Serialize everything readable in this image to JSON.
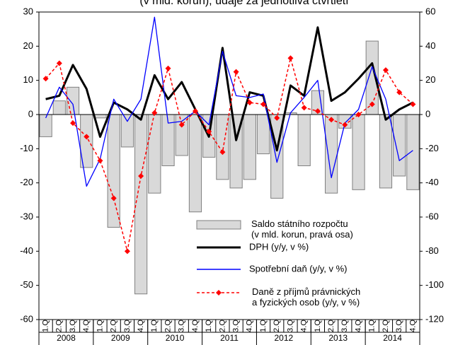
{
  "chart_data": {
    "type": "bar-line",
    "title": "(v mld. korun), údaje za jednotlivá čtvrtletí",
    "categories": [
      "1.Q",
      "2.Q",
      "3.Q",
      "4.Q",
      "1.Q",
      "2.Q",
      "3.Q",
      "4.Q",
      "1.Q",
      "2.Q",
      "3.Q",
      "4.Q",
      "1.Q",
      "2.Q",
      "3.Q",
      "4.Q",
      "1.Q",
      "2.Q",
      "3.Q",
      "4.Q",
      "1.Q",
      "2.Q",
      "3.Q",
      "4.Q",
      "1.Q",
      "2.Q",
      "3.Q",
      "4.Q"
    ],
    "years": [
      "2008",
      "2009",
      "2010",
      "2011",
      "2012",
      "2013",
      "2014"
    ],
    "ylim": [
      -60,
      30
    ],
    "yticks": [
      30,
      20,
      10,
      0,
      -10,
      -20,
      -30,
      -40,
      -50,
      -60
    ],
    "y2lim": [
      -120,
      60
    ],
    "y2ticks": [
      60,
      40,
      20,
      0,
      -20,
      -40,
      -60,
      -80,
      -100,
      -120
    ],
    "series": [
      {
        "name": "Saldo státního rozpočtu\n(v mld. korun, pravá osa)",
        "type": "bar",
        "axis": "y2",
        "color": "#d9d9d9",
        "values": [
          -13,
          8,
          16,
          -31,
          -2,
          -66,
          -19,
          -105,
          -46,
          -30,
          -24,
          -57,
          -25,
          -38,
          -43,
          -38,
          -23,
          -49,
          1,
          -30,
          14,
          -46,
          -8,
          -44,
          43,
          -43,
          -36,
          -44
        ]
      },
      {
        "name": "DPH  (y/y, v %)",
        "type": "line",
        "color": "#000000",
        "values": [
          4.5,
          5.5,
          14.5,
          7.5,
          -6.5,
          3.5,
          1.5,
          -1.5,
          11.5,
          4.5,
          9.5,
          1.5,
          -6.5,
          19.5,
          -7.5,
          6.5,
          5.5,
          -10.5,
          8.5,
          5.5,
          25.5,
          4,
          6.5,
          10.5,
          15,
          -1.5,
          1.5,
          3.5
        ]
      },
      {
        "name": "Spotřební daň  (y/y, v %)",
        "type": "line",
        "color": "#0000ff",
        "values": [
          -1,
          8,
          3,
          -21,
          -13,
          4.5,
          -2,
          4.5,
          28.5,
          -2.5,
          -2,
          1,
          -3,
          18.5,
          5.5,
          5,
          6,
          -14,
          0.5,
          5,
          10,
          -18.5,
          -2.5,
          1.5,
          14,
          4.5,
          -13.5,
          -10.5
        ]
      },
      {
        "name": "Daně z příjmů právnických\na fyzických osob  (y/y, v %)",
        "type": "dashed",
        "color": "#ff0000",
        "values": [
          10.5,
          15,
          -2.5,
          -6.5,
          -13.5,
          -24.5,
          -40,
          -18,
          0.5,
          13.5,
          -3,
          1,
          -5,
          -11,
          12.5,
          3.5,
          3,
          -1,
          16.5,
          2,
          1,
          -1.5,
          -3,
          0,
          3,
          13,
          6.5,
          3
        ]
      }
    ]
  }
}
